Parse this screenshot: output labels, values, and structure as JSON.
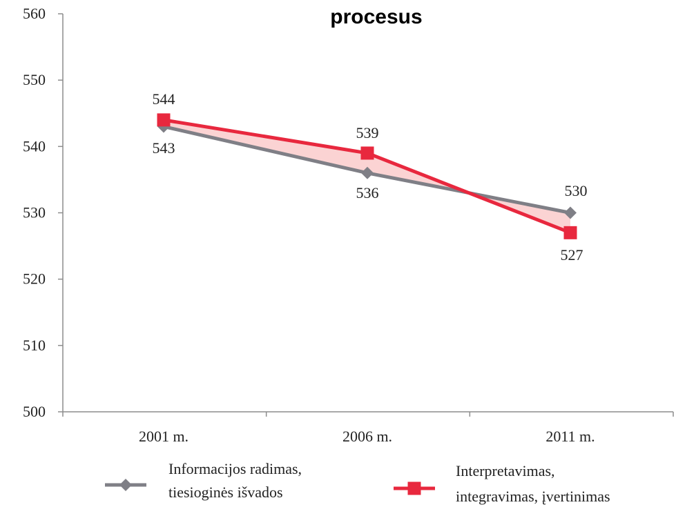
{
  "chart_data": {
    "type": "line",
    "title": "procesus",
    "categories": [
      "2001 m.",
      "2006 m.",
      "2011 m."
    ],
    "ylim": [
      500,
      560
    ],
    "yticks": [
      500,
      510,
      520,
      530,
      540,
      550,
      560
    ],
    "grid": false,
    "legend_position": "bottom",
    "series": [
      {
        "name": "Informacijos radimas, tiesioginės išvados",
        "legend_lines": [
          "Informacijos radimas,",
          "tiesioginės išvados"
        ],
        "values": [
          543,
          536,
          530
        ],
        "color": "#7f7f86",
        "marker": "diamond"
      },
      {
        "name": "Interpretavimas, integravimas, įvertinimas",
        "legend_lines": [
          "Interpretavimas,",
          "integravimas, įvertinimas"
        ],
        "values": [
          544,
          539,
          527
        ],
        "color": "#e8283e",
        "marker": "square"
      }
    ],
    "fill_between_color": "#fbd3d3"
  }
}
